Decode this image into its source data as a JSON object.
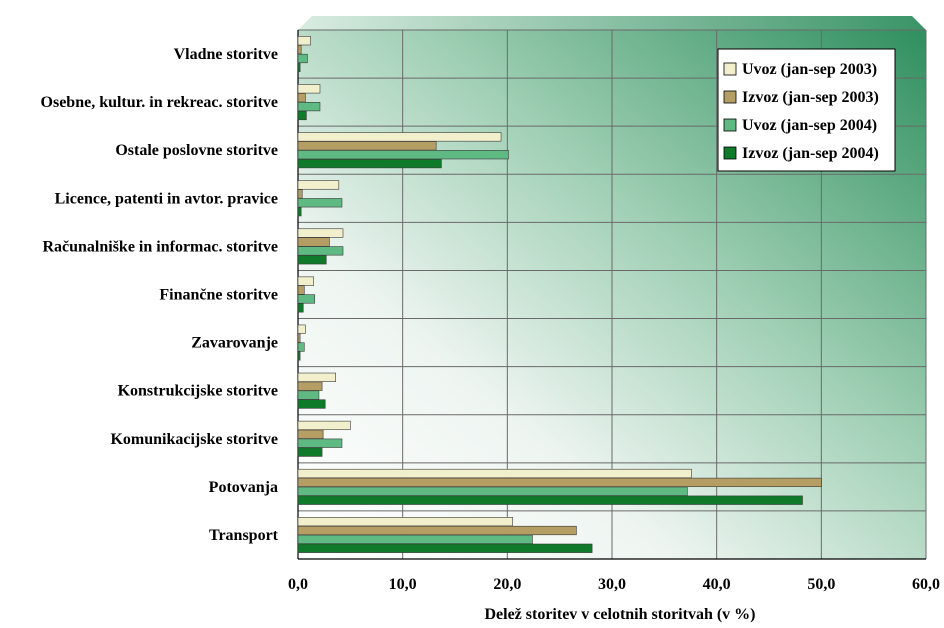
{
  "chart_data": {
    "type": "bar",
    "orientation": "horizontal",
    "categories": [
      "Vladne storitve",
      "Osebne, kultur. in rekreac. storitve",
      "Ostale poslovne storitve",
      "Licence, patenti in avtor. pravice",
      "Računalniške in informac. storitve",
      "Finančne storitve",
      "Zavarovanje",
      "Konstrukcijske storitve",
      "Komunikacijske storitve",
      "Potovanja",
      "Transport"
    ],
    "series": [
      {
        "name": "Uvoz (jan-sep 2003)",
        "color": "#f2efcc",
        "values": [
          1.2,
          2.1,
          19.4,
          3.9,
          4.3,
          1.5,
          0.7,
          3.6,
          5.0,
          37.6,
          20.5
        ]
      },
      {
        "name": "Izvoz (jan-sep 2003)",
        "color": "#b59e64",
        "values": [
          0.3,
          0.7,
          13.2,
          0.4,
          3.0,
          0.6,
          0.2,
          2.3,
          2.4,
          50.0,
          26.6
        ]
      },
      {
        "name": "Uvoz (jan-sep 2004)",
        "color": "#5fb982",
        "values": [
          0.9,
          2.1,
          20.1,
          4.2,
          4.3,
          1.6,
          0.6,
          2.0,
          4.2,
          37.2,
          22.4
        ]
      },
      {
        "name": "Izvoz (jan-sep 2004)",
        "color": "#0f7a2a",
        "values": [
          0.2,
          0.8,
          13.7,
          0.3,
          2.7,
          0.5,
          0.2,
          2.6,
          2.3,
          48.2,
          28.1
        ]
      }
    ],
    "xlabel": "Delež storitev v celotnih storitvah (v %)",
    "xlim": [
      0,
      60
    ],
    "xticks": [
      "0,0",
      "10,0",
      "20,0",
      "30,0",
      "40,0",
      "50,0",
      "60,0"
    ],
    "grid": true,
    "legend_position": "top-right"
  }
}
